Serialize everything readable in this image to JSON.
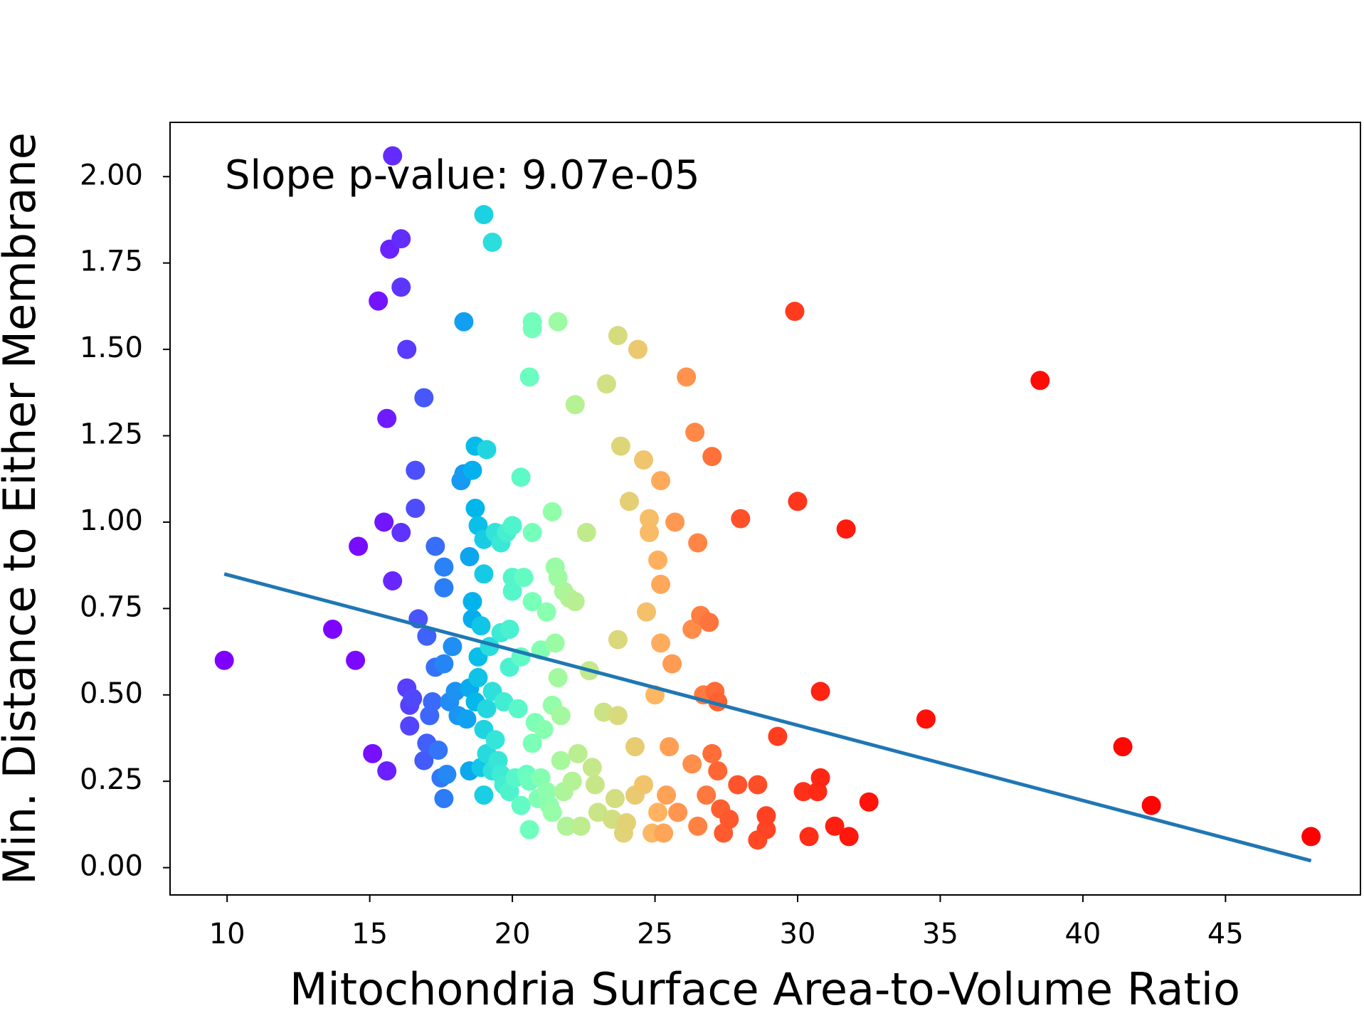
{
  "chart_data": {
    "type": "scatter",
    "x_label": "Mitochondria Surface Area-to-Volume Ratio",
    "y_label": "Min. Distance to Either Membrane",
    "annotation": "Slope p-value: 9.07e-05",
    "colormap": "rainbow",
    "xlim": [
      8,
      49.73
    ],
    "ylim": [
      -0.079,
      2.157
    ],
    "xticks": [
      10,
      15,
      20,
      25,
      30,
      35,
      40,
      45
    ],
    "yticks": [
      {
        "value": 0,
        "label": "0.00"
      },
      {
        "value": 0.25,
        "label": "0.25"
      },
      {
        "value": 0.5,
        "label": "0.50"
      },
      {
        "value": 0.75,
        "label": "0.75"
      },
      {
        "value": 1,
        "label": "1.00"
      },
      {
        "value": 1.25,
        "label": "1.25"
      },
      {
        "value": 1.5,
        "label": "1.50"
      },
      {
        "value": 1.75,
        "label": "1.75"
      },
      {
        "value": 2,
        "label": "2.00"
      }
    ],
    "x": [
      9.9,
      13.7,
      14.5,
      14.6,
      15.1,
      15.3,
      15.5,
      15.6,
      15.6,
      15.7,
      15.8,
      15.8,
      16.1,
      16.1,
      16.1,
      16.3,
      16.3,
      16.4,
      16.4,
      16.5,
      16.6,
      16.6,
      16.7,
      16.9,
      16.9,
      17.0,
      17.0,
      17.1,
      17.2,
      17.3,
      17.3,
      17.4,
      17.5,
      17.6,
      17.6,
      17.6,
      17.6,
      17.7,
      17.8,
      17.9,
      18.0,
      18.1,
      18.2,
      18.3,
      18.3,
      18.4,
      18.5,
      18.5,
      18.5,
      18.6,
      18.6,
      18.6,
      18.7,
      18.7,
      18.7,
      18.8,
      18.8,
      18.8,
      18.9,
      18.9,
      19.0,
      19.0,
      19.0,
      19.0,
      19.0,
      19.1,
      19.1,
      19.1,
      19.2,
      19.3,
      19.3,
      19.3,
      19.4,
      19.4,
      19.5,
      19.6,
      19.6,
      19.6,
      19.7,
      19.7,
      19.8,
      19.9,
      19.9,
      19.9,
      20.0,
      20.0,
      20.0,
      20.1,
      20.2,
      20.3,
      20.3,
      20.3,
      20.4,
      20.5,
      20.6,
      20.6,
      20.6,
      20.7,
      20.7,
      20.7,
      20.7,
      20.7,
      20.8,
      20.9,
      21.0,
      21.0,
      21.1,
      21.2,
      21.2,
      21.3,
      21.4,
      21.4,
      21.4,
      21.5,
      21.5,
      21.6,
      21.6,
      21.6,
      21.7,
      21.7,
      21.8,
      21.8,
      21.9,
      22.0,
      22.1,
      22.2,
      22.2,
      22.3,
      22.4,
      22.6,
      22.7,
      22.8,
      22.9,
      23.0,
      23.2,
      23.3,
      23.5,
      23.6,
      23.7,
      23.7,
      23.7,
      23.8,
      23.9,
      24.0,
      24.1,
      24.3,
      24.3,
      24.4,
      24.6,
      24.6,
      24.7,
      24.8,
      24.8,
      24.9,
      25.0,
      25.1,
      25.1,
      25.2,
      25.2,
      25.2,
      25.3,
      25.4,
      25.5,
      25.6,
      25.7,
      25.8,
      26.1,
      26.3,
      26.3,
      26.4,
      26.5,
      26.5,
      26.6,
      26.7,
      26.8,
      26.9,
      27.0,
      27.0,
      27.1,
      27.2,
      27.2,
      27.3,
      27.4,
      27.6,
      27.9,
      28.0,
      28.6,
      28.6,
      28.9,
      28.9,
      29.3,
      29.9,
      30.0,
      30.2,
      30.4,
      30.7,
      30.8,
      30.8,
      31.3,
      31.7,
      31.8,
      32.5,
      34.5,
      38.5,
      41.4,
      42.4,
      48.0
    ],
    "values": [
      0.6,
      0.69,
      0.6,
      0.93,
      0.33,
      1.64,
      1.0,
      1.3,
      0.28,
      1.79,
      0.83,
      2.06,
      1.82,
      0.97,
      1.68,
      1.5,
      0.52,
      0.47,
      0.41,
      0.49,
      1.04,
      1.15,
      0.72,
      1.36,
      0.31,
      0.36,
      0.67,
      0.44,
      0.48,
      0.93,
      0.58,
      0.34,
      0.26,
      0.2,
      0.81,
      0.87,
      0.59,
      0.27,
      0.48,
      0.64,
      0.51,
      0.44,
      1.12,
      1.14,
      1.58,
      0.43,
      0.9,
      0.28,
      0.52,
      0.72,
      1.15,
      0.77,
      1.04,
      0.48,
      1.22,
      0.61,
      0.99,
      0.55,
      0.7,
      0.29,
      0.85,
      0.95,
      0.21,
      1.89,
      0.4,
      1.21,
      0.46,
      0.33,
      0.64,
      1.81,
      0.51,
      0.28,
      0.97,
      0.37,
      0.31,
      0.94,
      0.68,
      0.27,
      0.48,
      0.24,
      0.97,
      0.69,
      0.58,
      0.22,
      0.99,
      0.84,
      0.8,
      0.26,
      0.46,
      1.13,
      0.61,
      0.18,
      0.84,
      0.27,
      1.42,
      0.25,
      0.11,
      1.58,
      1.56,
      0.97,
      0.77,
      0.36,
      0.42,
      0.2,
      0.63,
      0.26,
      0.4,
      0.74,
      0.22,
      0.18,
      1.03,
      0.47,
      0.16,
      0.87,
      0.65,
      1.58,
      0.84,
      0.55,
      0.44,
      0.31,
      0.8,
      0.22,
      0.12,
      0.78,
      0.25,
      1.34,
      0.77,
      0.33,
      0.12,
      0.97,
      0.57,
      0.29,
      0.24,
      0.16,
      0.45,
      1.4,
      0.14,
      0.2,
      1.54,
      0.44,
      0.66,
      1.22,
      0.1,
      0.13,
      1.06,
      0.35,
      0.21,
      1.5,
      1.18,
      0.24,
      0.74,
      1.01,
      0.97,
      0.1,
      0.5,
      0.16,
      0.89,
      0.65,
      1.12,
      0.82,
      0.1,
      0.21,
      0.35,
      0.59,
      1.0,
      0.16,
      1.42,
      0.3,
      0.69,
      1.26,
      0.94,
      0.12,
      0.73,
      0.5,
      0.21,
      0.71,
      1.19,
      0.33,
      0.51,
      0.28,
      0.48,
      0.17,
      0.1,
      0.14,
      0.24,
      1.01,
      0.24,
      0.08,
      0.11,
      0.15,
      0.38,
      1.61,
      1.06,
      0.22,
      0.09,
      0.22,
      0.26,
      0.51,
      0.12,
      0.98,
      0.09,
      0.19,
      0.43,
      1.41,
      0.35,
      0.18,
      0.09
    ],
    "fit": {
      "color": "#1f77b4",
      "x": [
        9.9,
        48.0
      ],
      "values": [
        0.85,
        0.02
      ]
    }
  }
}
